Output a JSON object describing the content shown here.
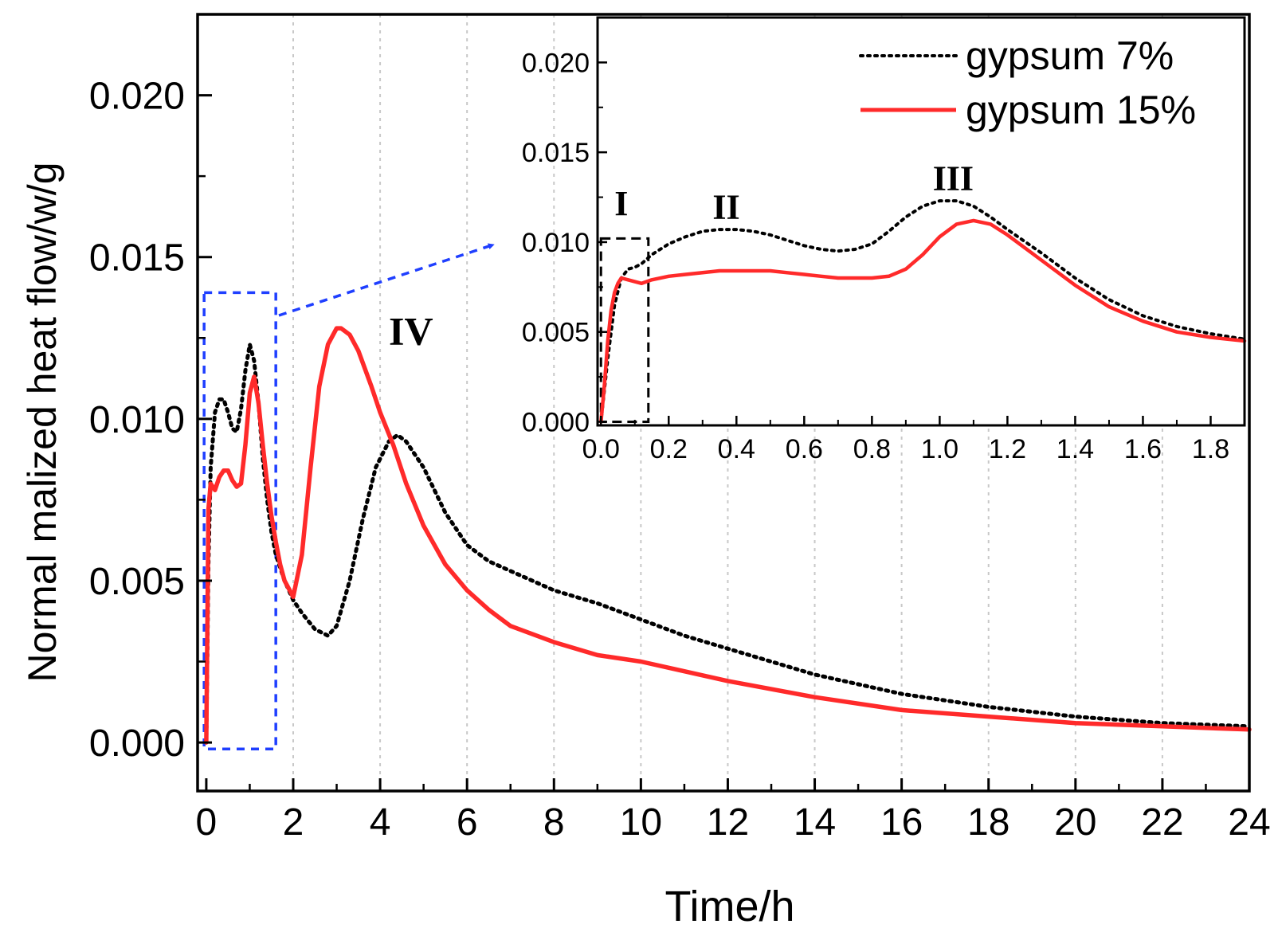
{
  "colors": {
    "series_7": "#000000",
    "series_15": "#ff2a2a",
    "zoom_box": "#1f3fff",
    "inset_box": "#000000",
    "grid": "#c8c8c8"
  },
  "chart_data": [
    {
      "id": "main",
      "type": "line",
      "title": "",
      "xlabel": "Time/h",
      "ylabel": "Normal malized heat flow/w/g",
      "xlim": [
        -0.2,
        24.0
      ],
      "ylim": [
        -0.0015,
        0.0225
      ],
      "xticks": [
        "0",
        "2",
        "4",
        "6",
        "8",
        "10",
        "12",
        "14",
        "16",
        "18",
        "20",
        "22",
        "24"
      ],
      "yticks": [
        "0.000",
        "0.005",
        "0.010",
        "0.015",
        "0.020"
      ],
      "grid": "vertical dotted",
      "annotations": [
        {
          "text": "IV",
          "x": 4.2,
          "y": 0.0123
        }
      ],
      "zoom_region": {
        "x": [
          -0.05,
          1.6
        ],
        "y": [
          -0.0002,
          0.0139
        ],
        "arrow_to": "inset"
      },
      "series": [
        {
          "name": "gypsum 7%",
          "style": "dotted",
          "x": [
            0.0,
            0.05,
            0.1,
            0.2,
            0.3,
            0.4,
            0.5,
            0.6,
            0.7,
            0.8,
            0.9,
            1.0,
            1.1,
            1.2,
            1.3,
            1.4,
            1.5,
            1.6,
            1.8,
            2.0,
            2.2,
            2.5,
            2.8,
            3.0,
            3.3,
            3.6,
            3.9,
            4.2,
            4.4,
            4.6,
            5.0,
            5.5,
            6.0,
            6.5,
            7.0,
            8.0,
            9.0,
            10.0,
            11.0,
            12.0,
            14.0,
            16.0,
            18.0,
            20.0,
            22.0,
            24.0
          ],
          "y": [
            0.0,
            0.0055,
            0.0085,
            0.0102,
            0.0106,
            0.0106,
            0.0102,
            0.0097,
            0.0096,
            0.0103,
            0.0115,
            0.0123,
            0.0118,
            0.0105,
            0.0088,
            0.0075,
            0.0065,
            0.0058,
            0.005,
            0.0044,
            0.004,
            0.0035,
            0.0033,
            0.0036,
            0.005,
            0.0069,
            0.0085,
            0.0093,
            0.0095,
            0.0093,
            0.0085,
            0.0071,
            0.0061,
            0.0056,
            0.0053,
            0.0047,
            0.0043,
            0.0038,
            0.0033,
            0.0029,
            0.0021,
            0.0015,
            0.0011,
            0.0008,
            0.0006,
            0.0005
          ]
        },
        {
          "name": "gypsum 15%",
          "style": "solid",
          "x": [
            0.0,
            0.05,
            0.1,
            0.2,
            0.3,
            0.4,
            0.5,
            0.6,
            0.7,
            0.8,
            0.9,
            1.0,
            1.1,
            1.2,
            1.3,
            1.4,
            1.5,
            1.6,
            1.7,
            1.8,
            2.0,
            2.2,
            2.4,
            2.6,
            2.8,
            3.0,
            3.1,
            3.3,
            3.5,
            3.8,
            4.0,
            4.3,
            4.6,
            5.0,
            5.5,
            6.0,
            6.5,
            7.0,
            8.0,
            9.0,
            10.0,
            11.0,
            12.0,
            14.0,
            16.0,
            18.0,
            20.0,
            22.0,
            24.0
          ],
          "y": [
            0.0,
            0.0072,
            0.008,
            0.0078,
            0.0082,
            0.0084,
            0.0084,
            0.0081,
            0.0079,
            0.008,
            0.0092,
            0.0108,
            0.0113,
            0.0105,
            0.0092,
            0.008,
            0.007,
            0.0062,
            0.0055,
            0.005,
            0.0045,
            0.0058,
            0.0085,
            0.011,
            0.0123,
            0.0128,
            0.0128,
            0.0126,
            0.0121,
            0.011,
            0.0102,
            0.0092,
            0.008,
            0.0067,
            0.0055,
            0.0047,
            0.0041,
            0.0036,
            0.0031,
            0.0027,
            0.0025,
            0.0022,
            0.0019,
            0.0014,
            0.001,
            0.0008,
            0.0006,
            0.0005,
            0.0004
          ]
        }
      ]
    },
    {
      "id": "inset",
      "type": "line",
      "title": "",
      "xlabel": "",
      "ylabel": "",
      "xlim": [
        -0.01,
        1.9
      ],
      "ylim": [
        -0.0002,
        0.0225
      ],
      "xticks": [
        "0.0",
        "0.2",
        "0.4",
        "0.6",
        "0.8",
        "1.0",
        "1.2",
        "1.4",
        "1.6",
        "1.8"
      ],
      "yticks": [
        "0.000",
        "0.005",
        "0.010",
        "0.015",
        "0.020"
      ],
      "legend": {
        "position": "top-right",
        "entries": [
          "gypsum 7%",
          "gypsum 15%"
        ]
      },
      "annotations": [
        {
          "text": "I",
          "x": 0.06,
          "y": 0.0115
        },
        {
          "text": "II",
          "x": 0.37,
          "y": 0.0113
        },
        {
          "text": "III",
          "x": 1.04,
          "y": 0.0129
        }
      ],
      "zoom_region": {
        "x": [
          0.0,
          0.14
        ],
        "y": [
          0.0,
          0.0102
        ]
      },
      "series": [
        {
          "name": "gypsum 7%",
          "style": "dotted",
          "x": [
            0.0,
            0.02,
            0.04,
            0.06,
            0.08,
            0.1,
            0.12,
            0.15,
            0.2,
            0.25,
            0.3,
            0.35,
            0.4,
            0.45,
            0.5,
            0.55,
            0.6,
            0.65,
            0.7,
            0.75,
            0.8,
            0.85,
            0.9,
            0.95,
            1.0,
            1.05,
            1.1,
            1.15,
            1.2,
            1.3,
            1.4,
            1.5,
            1.6,
            1.7,
            1.8,
            1.9
          ],
          "y": [
            0.0,
            0.0035,
            0.0065,
            0.008,
            0.0085,
            0.0086,
            0.0088,
            0.0093,
            0.0099,
            0.0103,
            0.0106,
            0.0107,
            0.0107,
            0.0106,
            0.0104,
            0.0101,
            0.0098,
            0.0096,
            0.0095,
            0.0096,
            0.0099,
            0.0106,
            0.0114,
            0.012,
            0.0123,
            0.0123,
            0.012,
            0.0114,
            0.0107,
            0.0094,
            0.008,
            0.0068,
            0.0059,
            0.0053,
            0.0049,
            0.0046
          ]
        },
        {
          "name": "gypsum 15%",
          "style": "solid",
          "x": [
            0.0,
            0.01,
            0.02,
            0.03,
            0.04,
            0.05,
            0.06,
            0.08,
            0.1,
            0.12,
            0.15,
            0.2,
            0.25,
            0.3,
            0.35,
            0.4,
            0.45,
            0.5,
            0.55,
            0.6,
            0.65,
            0.7,
            0.75,
            0.8,
            0.85,
            0.9,
            0.95,
            1.0,
            1.05,
            1.1,
            1.15,
            1.2,
            1.3,
            1.4,
            1.5,
            1.6,
            1.7,
            1.8,
            1.9
          ],
          "y": [
            0.0,
            0.002,
            0.0045,
            0.0062,
            0.0072,
            0.0077,
            0.008,
            0.0079,
            0.0078,
            0.0077,
            0.0079,
            0.0081,
            0.0082,
            0.0083,
            0.0084,
            0.0084,
            0.0084,
            0.0084,
            0.0083,
            0.0082,
            0.0081,
            0.008,
            0.008,
            0.008,
            0.0081,
            0.0085,
            0.0093,
            0.0103,
            0.011,
            0.0112,
            0.011,
            0.0104,
            0.009,
            0.0076,
            0.0064,
            0.0056,
            0.005,
            0.0047,
            0.0045
          ]
        }
      ]
    }
  ]
}
